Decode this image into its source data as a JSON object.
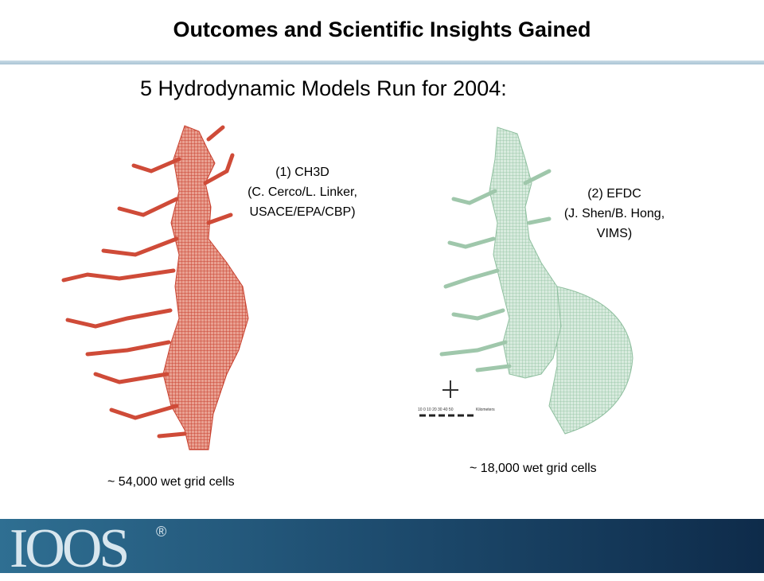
{
  "header": {
    "title": "Outcomes and Scientific Insights Gained"
  },
  "subtitle": "5 Hydrodynamic Models Run for 2004:",
  "models": [
    {
      "label_lines": [
        "(1) CH3D",
        "(C. Cerco/L. Linker,",
        "USACE/EPA/CBP)"
      ],
      "caption": "~ 54,000 wet grid cells"
    },
    {
      "label_lines": [
        "(2) EFDC",
        "(J. Shen/B. Hong,",
        "VIMS)"
      ],
      "caption": "~ 18,000 wet grid cells",
      "scale_bar": "10  0  10  20  30  40  50",
      "scale_unit": "Kilometers"
    }
  ],
  "footer": {
    "logo": "IOOS",
    "registered": "®"
  }
}
